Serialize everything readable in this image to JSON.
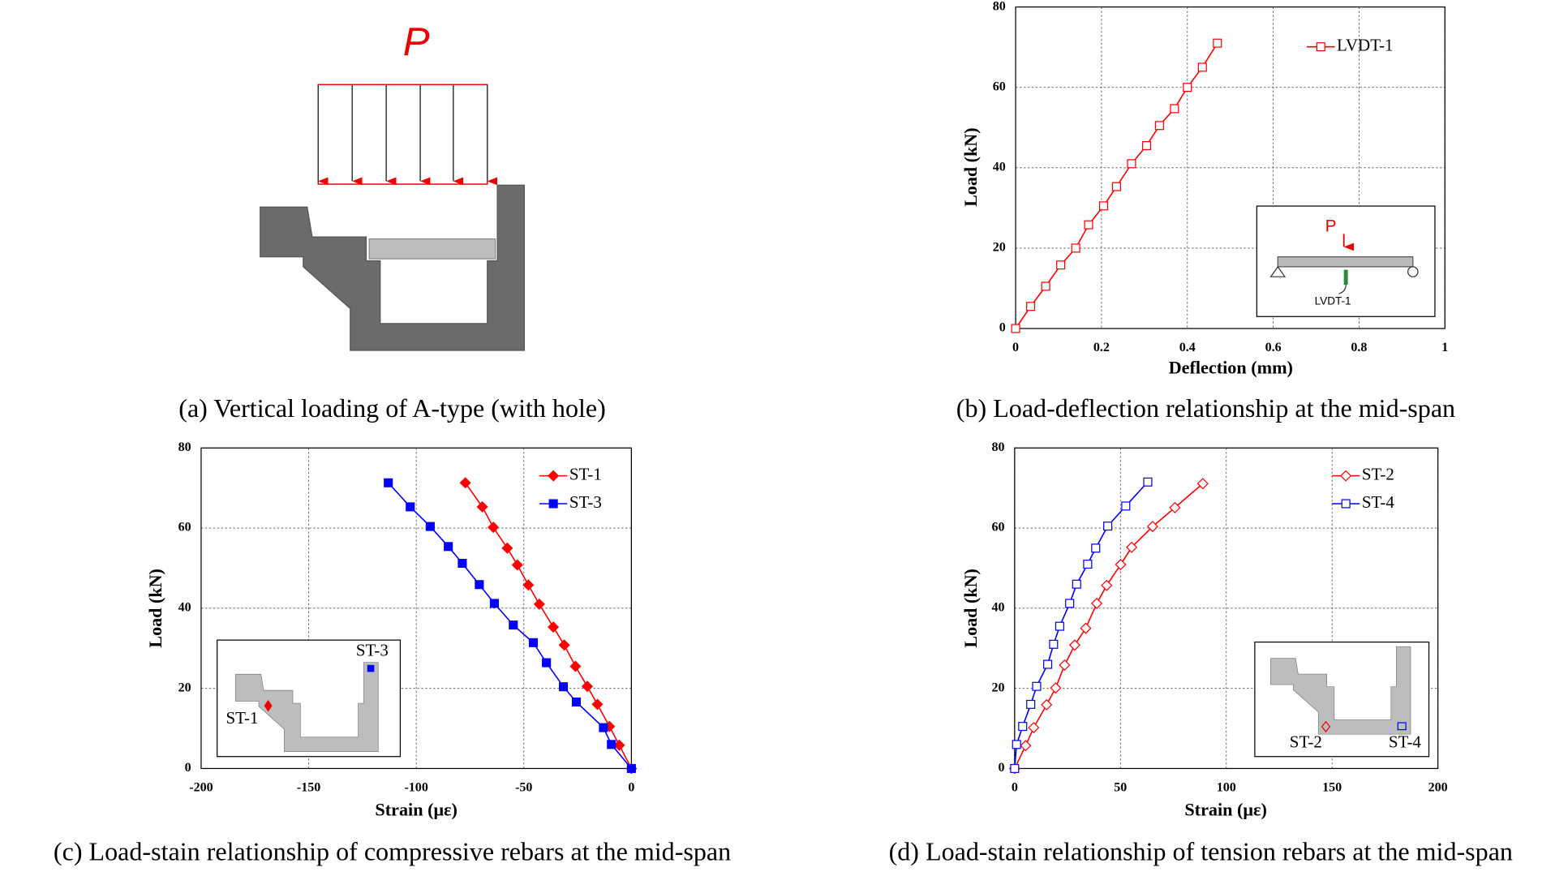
{
  "diagram": {
    "load_label": "P",
    "caption": "(a) Vertical loading of A-type (with hole)"
  },
  "chart_data": [
    {
      "type": "line",
      "caption": "(b) Load-deflection relationship at the mid-span",
      "x_label": "Deflection (mm)",
      "y_label": "Load (kN)",
      "xlim": [
        0,
        1
      ],
      "xticks": [
        0,
        0.2,
        0.4,
        0.6,
        0.8,
        1
      ],
      "ylim": [
        0,
        80
      ],
      "yticks": [
        0,
        20,
        40,
        60,
        80
      ],
      "grid": true,
      "legend": "upper right",
      "inset_labels": [
        "P",
        "LVDT-1"
      ],
      "series": [
        {
          "name": "LVDT-1",
          "color": "#ff0000",
          "marker": "square",
          "filled": false,
          "x": [
            0,
            0.035,
            0.07,
            0.105,
            0.14,
            0.17,
            0.205,
            0.235,
            0.27,
            0.305,
            0.335,
            0.37,
            0.4,
            0.435,
            0.47
          ],
          "values": [
            0,
            5.5,
            10.5,
            15.8,
            20,
            25.8,
            30.5,
            35.3,
            41,
            45.5,
            50.5,
            54.7,
            60,
            65,
            71
          ]
        }
      ]
    },
    {
      "type": "line",
      "caption": "(c) Load-stain relationship of compressive rebars at the mid-span",
      "x_label": "Strain (με)",
      "y_label": "Load (kN)",
      "xlim": [
        -200,
        0
      ],
      "xticks": [
        -200,
        -150,
        -100,
        -50,
        0
      ],
      "ylim": [
        0,
        80
      ],
      "yticks": [
        0,
        20,
        40,
        60,
        80
      ],
      "grid": true,
      "legend": "upper right",
      "inset_labels": [
        "ST-3",
        "ST-1"
      ],
      "series": [
        {
          "name": "ST-1",
          "color": "#ff0000",
          "marker": "diamond",
          "filled": true,
          "x": [
            0,
            -5.6,
            -10.2,
            -15.8,
            -20.5,
            -26,
            -31.2,
            -36.3,
            -42.8,
            -47.9,
            -53,
            -57.7,
            -64.2,
            -69.3,
            -77.2
          ],
          "values": [
            0,
            5.8,
            10.5,
            16,
            20.5,
            25.5,
            30.8,
            35.3,
            41,
            45.8,
            50.8,
            55,
            60.2,
            65.3,
            71.3
          ]
        },
        {
          "name": "ST-3",
          "color": "#0000ff",
          "marker": "square",
          "filled": true,
          "x": [
            0,
            -9.3,
            -13,
            -25.6,
            -31.6,
            -39.5,
            -45.6,
            -54.9,
            -63.7,
            -70.7,
            -78.6,
            -85.1,
            -93.5,
            -102.8,
            -113
          ],
          "values": [
            0,
            6,
            10.2,
            16.6,
            20.4,
            26.4,
            31.4,
            35.8,
            41.2,
            45.9,
            51.2,
            55.4,
            60.4,
            65.3,
            71.3
          ]
        }
      ]
    },
    {
      "type": "line",
      "caption": "(d) Load-stain relationship of tension rebars at the mid-span",
      "x_label": "Strain (με)",
      "y_label": "Load (kN)",
      "xlim": [
        0,
        200
      ],
      "xticks": [
        0,
        50,
        100,
        150,
        200
      ],
      "ylim": [
        0,
        80
      ],
      "yticks": [
        0,
        20,
        40,
        60,
        80
      ],
      "grid": true,
      "legend": "upper right",
      "inset_labels": [
        "ST-2",
        "ST-4"
      ],
      "series": [
        {
          "name": "ST-2",
          "color": "#ff0000",
          "marker": "diamond",
          "filled": false,
          "x": [
            0,
            5.2,
            9,
            15.1,
            19.4,
            23.6,
            28.4,
            33.6,
            38.8,
            43.5,
            50.1,
            55.3,
            65.2,
            75.7,
            88.9
          ],
          "values": [
            0,
            5.7,
            10.2,
            15.9,
            20.1,
            25.8,
            30.8,
            35,
            41.2,
            45.7,
            50.9,
            55.2,
            60.4,
            65.1,
            71.1
          ]
        },
        {
          "name": "ST-4",
          "color": "#0000ff",
          "marker": "square",
          "filled": false,
          "x": [
            0,
            0.9,
            3.8,
            7.6,
            10.4,
            15.6,
            18.4,
            21.3,
            26,
            29.3,
            34.5,
            38.3,
            44,
            52.5,
            62.9
          ],
          "values": [
            0,
            6,
            10.5,
            16,
            20.5,
            26,
            31,
            35.5,
            41.2,
            46,
            51,
            55,
            60.5,
            65.5,
            71.5
          ]
        }
      ]
    }
  ]
}
